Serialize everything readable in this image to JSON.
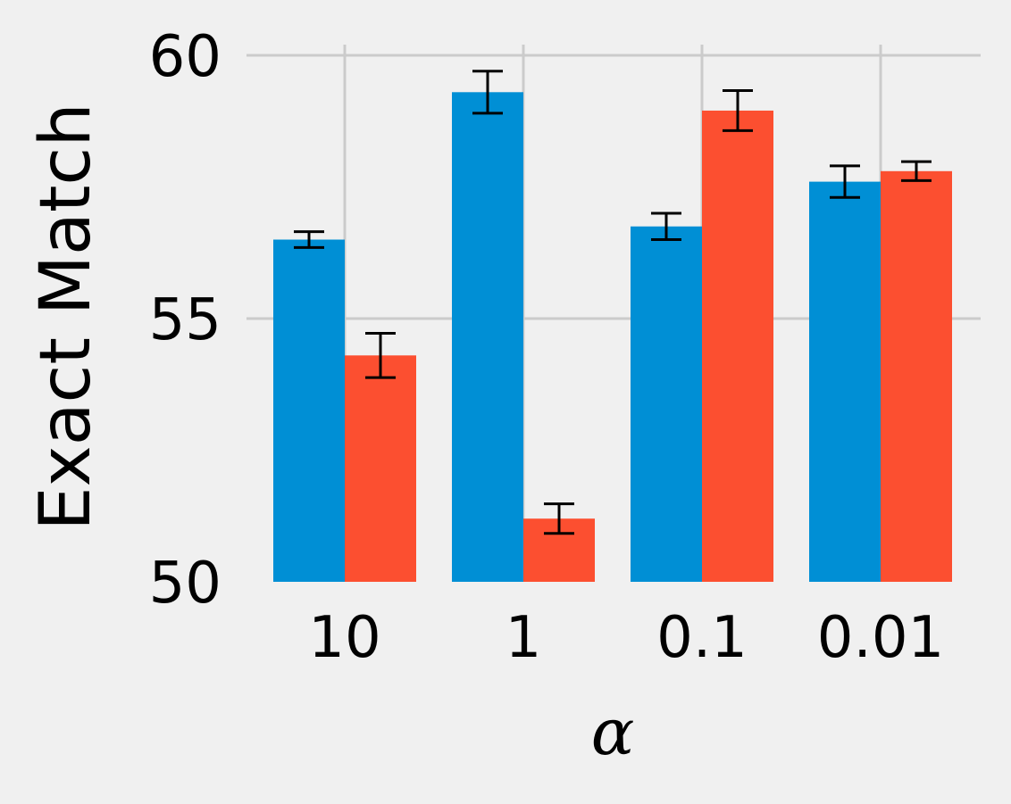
{
  "chart_data": {
    "type": "bar",
    "categories": [
      "10",
      "1",
      "0.1",
      "0.01"
    ],
    "xlabel": "α",
    "ylabel": "Exact Match",
    "ylim": [
      50,
      60
    ],
    "yticks": [
      "50",
      "55",
      "60"
    ],
    "grid": true,
    "series": [
      {
        "color": "#008fd5",
        "values": [
          56.5,
          59.3,
          56.75,
          57.6
        ],
        "errors": [
          0.15,
          0.4,
          0.25,
          0.3
        ]
      },
      {
        "color": "#fc4f30",
        "values": [
          54.3,
          51.2,
          58.95,
          57.8
        ],
        "errors": [
          0.42,
          0.28,
          0.38,
          0.18
        ]
      }
    ]
  },
  "style": {
    "background": "#f0f0f0",
    "grid_color": "#cbcbcb",
    "error_color": "#000000"
  }
}
